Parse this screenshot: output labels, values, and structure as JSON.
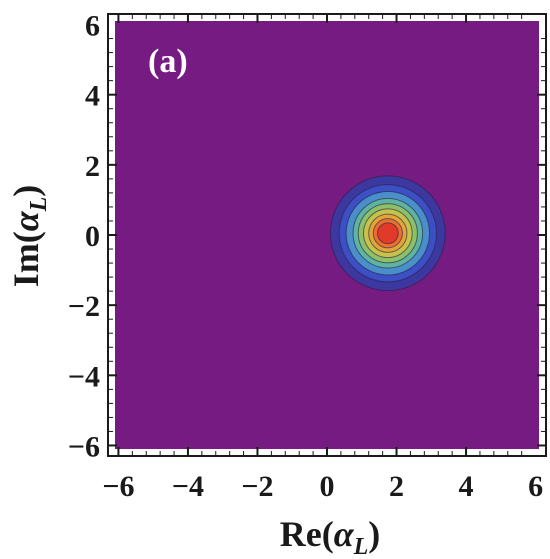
{
  "chart_data": {
    "type": "heatmap",
    "panel_label": "(a)",
    "xlabel_main": "Re(",
    "xlabel_var": "α",
    "xlabel_sub": "L",
    "xlabel_close": ")",
    "ylabel_main": "Im(",
    "ylabel_var": "α",
    "ylabel_sub": "L",
    "ylabel_close": ")",
    "xlim": [
      -6.3,
      6.3
    ],
    "ylim": [
      -6.3,
      6.3
    ],
    "x_ticks": [
      -6,
      -4,
      -2,
      0,
      2,
      4,
      6
    ],
    "x_tick_labels": [
      "−6",
      "−4",
      "−2",
      "0",
      "2",
      "4",
      "6"
    ],
    "y_ticks": [
      -6,
      -4,
      -2,
      0,
      2,
      4,
      6
    ],
    "y_tick_labels": [
      "−6",
      "−4",
      "−2",
      "0",
      "2",
      "4",
      "6"
    ],
    "background_color": "#751b81",
    "peak_center": {
      "x": 1.75,
      "y": 0.05
    },
    "contour_radii": [
      1.65,
      1.4,
      1.2,
      1.0,
      0.85,
      0.7,
      0.55,
      0.42,
      0.3
    ],
    "contour_colors": [
      "#3d38a0",
      "#3c4fc4",
      "#4a8fc9",
      "#5fb3a0",
      "#8cc16a",
      "#c6c24a",
      "#e3a43c",
      "#e9702f",
      "#e23a2a"
    ],
    "grid": false
  }
}
